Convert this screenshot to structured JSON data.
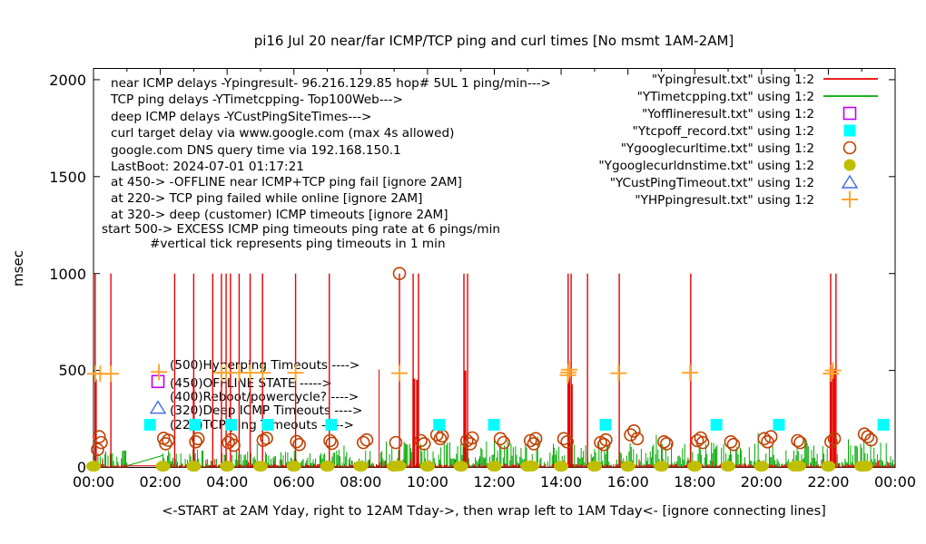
{
  "title": "pi16 Jul 20  near/far ICMP/TCP ping and curl times [No msmt 1AM-2AM]",
  "y_axis": {
    "label": "msec",
    "ticks": [
      {
        "v": 0,
        "label": "0"
      },
      {
        "v": 500,
        "label": "500"
      },
      {
        "v": 1000,
        "label": "1000"
      },
      {
        "v": 1500,
        "label": "1500"
      },
      {
        "v": 2000,
        "label": "2000"
      }
    ]
  },
  "x_axis": {
    "tick_labels": [
      "00:00",
      "02:00",
      "04:00",
      "06:00",
      "08:00",
      "10:00",
      "12:00",
      "14:00",
      "16:00",
      "18:00",
      "20:00",
      "22:00",
      "00:00"
    ],
    "caption": "<-START at 2AM Yday, right to 12AM Tday->, then wrap left to 1AM Tday<- [ignore connecting lines]"
  },
  "legend": {
    "items": [
      {
        "label": "\"Ypingresult.txt\" using 1:2",
        "marker": "line",
        "color": "#e60000"
      },
      {
        "label": "\"YTimetcpping.txt\" using 1:2",
        "marker": "line",
        "color": "#00a800"
      },
      {
        "label": "\"Yofflineresult.txt\" using 1:2",
        "marker": "open-square",
        "color": "#bf00ff"
      },
      {
        "label": "\"Ytcpoff_record.txt\" using 1:2",
        "marker": "filled-square",
        "color": "#00ffff"
      },
      {
        "label": "\"Ygooglecurltime.txt\" using 1:2",
        "marker": "open-circle",
        "color": "#c04000"
      },
      {
        "label": "\"Ygooglecurldnstime.txt\" using 1:2",
        "marker": "filled-circle",
        "color": "#bfbf00"
      },
      {
        "label": "\"YCustPingTimeout.txt\" using 1:2",
        "marker": "open-triangle",
        "color": "#4169e1"
      },
      {
        "label": "\"YHPpingresult.txt\" using 1:2",
        "marker": "plus",
        "color": "#ffa530"
      }
    ]
  },
  "annotations": {
    "info_lines": [
      {
        "text": "near ICMP delays -Ypingresult- 96.216.129.85 hop# 5UL 1 ping/min--->"
      },
      {
        "text": "TCP ping delays -YTimetcpping- Top100Web--->"
      },
      {
        "text": "deep ICMP delays -YCustPingSiteTimes--->"
      },
      {
        "text": "curl target delay via www.google.com (max 4s allowed)"
      },
      {
        "text": "google.com DNS query time via 192.168.150.1"
      },
      {
        "text": "LastBoot: 2024-07-01 01:17:21"
      },
      {
        "text": "at 450-> -OFFLINE near ICMP+TCP ping fail [ignore 2AM]"
      },
      {
        "text": "at 220-> TCP ping failed while online [ignore 2AM]"
      },
      {
        "text": "at 320-> deep (customer) ICMP timeouts [ignore 2AM]"
      },
      {
        "text": "start 500-> EXCESS ICMP ping timeouts ping rate at 6 pings/min"
      },
      {
        "text": "#vertical tick represents ping timeouts in 1 min"
      }
    ],
    "level_labels": [
      {
        "text": "(500)Hyperping Timeouts ---->",
        "level": 500
      },
      {
        "text": "(450)OFFLINE STATE ----->",
        "level": 450
      },
      {
        "text": "(400)Reboot/powercycle? ---->",
        "level": 400
      },
      {
        "text": "(320)Deep ICMP Timeouts ---->",
        "level": 320
      },
      {
        "text": "(220)TCP ping Timeouts ----->",
        "level": 220
      }
    ]
  },
  "chart_data": {
    "type": "line",
    "x_range_hours": [
      0,
      24
    ],
    "y_axis_max": 2058,
    "y_ticks": [
      0,
      500,
      1000,
      1500,
      2000
    ],
    "gap_no_measurement_hours": [
      1.0,
      2.08
    ],
    "noise_seed": 42,
    "series": [
      {
        "file": "Ypingresult.txt",
        "style": "impulses",
        "color": "#e60000",
        "timeout_spikes_1000": [
          0.05,
          0.52,
          2.43,
          3.0,
          3.57,
          3.83,
          3.97,
          4.1,
          4.36,
          4.69,
          5.06,
          6.05,
          7.06,
          9.16,
          9.57,
          9.73,
          11.09,
          11.2,
          14.21,
          14.3,
          14.79,
          15.74,
          17.88,
          22.07,
          22.23
        ],
        "medium_spikes": [
          [
            0.07,
            455,
            2
          ],
          [
            3.0,
            450,
            2
          ],
          [
            8.55,
            505,
            1
          ],
          [
            9.59,
            458,
            3
          ],
          [
            9.7,
            452,
            3
          ],
          [
            11.12,
            500,
            3
          ],
          [
            14.23,
            497,
            3
          ],
          [
            14.32,
            430,
            2
          ],
          [
            22.08,
            518,
            3
          ],
          [
            22.17,
            508,
            3
          ]
        ],
        "baseline": {
          "typical_min": 2,
          "typical_max": 18,
          "burst_max": 45
        },
        "connector": [
          [
            1.0,
            8
          ],
          [
            2.08,
            8
          ]
        ]
      },
      {
        "file": "YTimetcpping.txt",
        "style": "impulses",
        "color": "#00a800",
        "grass_segments": [
          {
            "from": 0.0,
            "to": 1.0,
            "max": 95
          },
          {
            "from": 2.08,
            "to": 8.5,
            "max": 85
          },
          {
            "from": 8.5,
            "to": 24.0,
            "max": 125
          }
        ],
        "tall_spikes": [
          [
            4.9,
            120
          ],
          [
            7.5,
            112
          ],
          [
            9.3,
            132
          ],
          [
            10.6,
            128
          ],
          [
            12.0,
            142
          ],
          [
            13.3,
            158
          ],
          [
            16.85,
            168
          ],
          [
            19.9,
            178
          ],
          [
            21.3,
            152
          ],
          [
            22.6,
            145
          ]
        ],
        "connector": [
          [
            1.0,
            8
          ],
          [
            2.08,
            62
          ]
        ]
      },
      {
        "file": "Yofflineresult.txt",
        "style": "points",
        "marker": "open-square",
        "color": "#bf00ff",
        "points": [
          [
            1.93,
            443
          ]
        ]
      },
      {
        "file": "Ytcpoff_record.txt",
        "style": "points",
        "marker": "filled-square",
        "color": "#00ffff",
        "points": [
          [
            1.69,
            220
          ],
          [
            3.04,
            220
          ],
          [
            4.13,
            220
          ],
          [
            5.22,
            220
          ],
          [
            7.12,
            220
          ],
          [
            10.35,
            220
          ],
          [
            11.99,
            220
          ],
          [
            15.33,
            220
          ],
          [
            18.65,
            220
          ],
          [
            20.52,
            220
          ],
          [
            23.65,
            220
          ]
        ]
      },
      {
        "file": "Ygooglecurltime.txt",
        "style": "points",
        "marker": "open-circle",
        "color": "#c04000",
        "points": [
          [
            0.12,
            92
          ],
          [
            0.17,
            158
          ],
          [
            0.23,
            128
          ],
          [
            2.1,
            150
          ],
          [
            2.16,
            122
          ],
          [
            2.24,
            140
          ],
          [
            3.06,
            132
          ],
          [
            3.13,
            148
          ],
          [
            4.04,
            128
          ],
          [
            4.12,
            143
          ],
          [
            4.2,
            114
          ],
          [
            5.08,
            140
          ],
          [
            5.18,
            150
          ],
          [
            6.08,
            133
          ],
          [
            6.16,
            118
          ],
          [
            7.08,
            138
          ],
          [
            7.14,
            124
          ],
          [
            8.08,
            128
          ],
          [
            8.18,
            142
          ],
          [
            9.05,
            128
          ],
          [
            9.16,
            1000
          ],
          [
            9.8,
            138
          ],
          [
            9.9,
            122
          ],
          [
            10.28,
            168
          ],
          [
            10.38,
            148
          ],
          [
            10.44,
            162
          ],
          [
            11.18,
            138
          ],
          [
            11.28,
            122
          ],
          [
            11.34,
            152
          ],
          [
            12.18,
            148
          ],
          [
            12.28,
            128
          ],
          [
            13.08,
            138
          ],
          [
            13.18,
            122
          ],
          [
            13.24,
            148
          ],
          [
            14.08,
            148
          ],
          [
            14.18,
            132
          ],
          [
            15.18,
            128
          ],
          [
            15.28,
            118
          ],
          [
            15.34,
            142
          ],
          [
            16.08,
            168
          ],
          [
            16.18,
            188
          ],
          [
            16.28,
            148
          ],
          [
            17.08,
            132
          ],
          [
            17.16,
            122
          ],
          [
            18.08,
            138
          ],
          [
            18.18,
            152
          ],
          [
            18.24,
            128
          ],
          [
            19.08,
            132
          ],
          [
            19.16,
            118
          ],
          [
            20.08,
            148
          ],
          [
            20.18,
            132
          ],
          [
            20.28,
            158
          ],
          [
            21.08,
            138
          ],
          [
            21.16,
            128
          ],
          [
            22.08,
            132
          ],
          [
            22.18,
            148
          ],
          [
            23.08,
            172
          ],
          [
            23.18,
            158
          ],
          [
            23.28,
            142
          ]
        ]
      },
      {
        "file": "Ygooglecurldnstime.txt",
        "style": "points",
        "marker": "filled-circle",
        "color": "#bfbf00",
        "points": [
          [
            0,
            6
          ],
          [
            2.08,
            6
          ],
          [
            3,
            6
          ],
          [
            4,
            6
          ],
          [
            5,
            6
          ],
          [
            6,
            6
          ],
          [
            7,
            6
          ],
          [
            8,
            6
          ],
          [
            9,
            6
          ],
          [
            9.15,
            8
          ],
          [
            10,
            6
          ],
          [
            11,
            6
          ],
          [
            12,
            6
          ],
          [
            13,
            6
          ],
          [
            13.12,
            7
          ],
          [
            14,
            6
          ],
          [
            15,
            6
          ],
          [
            16,
            6
          ],
          [
            17,
            6
          ],
          [
            18,
            6
          ],
          [
            19,
            6
          ],
          [
            20,
            6
          ],
          [
            21,
            6
          ],
          [
            21.12,
            7
          ],
          [
            22,
            6
          ],
          [
            23,
            6
          ],
          [
            23.12,
            7
          ]
        ]
      },
      {
        "file": "YCustPingTimeout.txt",
        "style": "points",
        "marker": "open-triangle",
        "color": "#4169e1",
        "points": [
          [
            1.93,
            308
          ]
        ]
      },
      {
        "file": "YHPpingresult.txt",
        "style": "points",
        "marker": "plus",
        "color": "#ffa530",
        "points": [
          [
            0.05,
            483
          ],
          [
            0.2,
            483
          ],
          [
            0.52,
            483
          ],
          [
            1.96,
            492
          ],
          [
            3.83,
            488
          ],
          [
            3.97,
            488
          ],
          [
            4.36,
            488
          ],
          [
            4.69,
            488
          ],
          [
            5.06,
            488
          ],
          [
            6.05,
            488
          ],
          [
            9.16,
            486
          ],
          [
            14.2,
            476
          ],
          [
            14.22,
            490
          ],
          [
            14.24,
            504
          ],
          [
            15.72,
            486
          ],
          [
            17.86,
            488
          ],
          [
            22.08,
            484
          ],
          [
            22.14,
            500
          ]
        ]
      }
    ]
  }
}
